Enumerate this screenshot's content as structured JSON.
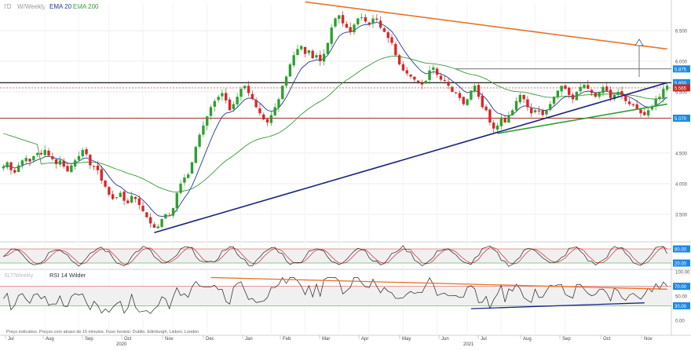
{
  "header": {
    "instrument": "I'D",
    "timeframe": "W/Weekly",
    "indicators": [
      "EMA 20",
      "EMA 200"
    ]
  },
  "rsi_header": {
    "prefix": "SLT/Weekly",
    "label": "RSI 14 Wilder"
  },
  "footer_note": "Preço indicativo. Preços com atraso de 15 minutos. Fuso horário: Dublin, Edinburgh, Lisbon, London",
  "colors": {
    "up_candle": "#2ca02c",
    "down_candle": "#d62728",
    "ema20": "#1f3a93",
    "ema200": "#3a9a3a",
    "trend_orange": "#e8742a",
    "trend_navy": "#1a237e",
    "trend_green": "#2e9e2e",
    "resistance_black": "#000000",
    "support_red": "#a0302a",
    "badge_blue": "#1e88e5",
    "badge_red": "#c62828"
  },
  "chart_data": [
    {
      "type": "candlestick",
      "panel": "price",
      "y_ticks": [
        "6.500",
        "6.000",
        "5.500",
        "5.070",
        "4.500",
        "4.000",
        "3.500"
      ],
      "y_tick_values": [
        6.5,
        6.0,
        5.5,
        5.07,
        4.5,
        4.0,
        3.5
      ],
      "ylim": [
        3.1,
        6.95
      ],
      "badges": [
        {
          "label": "5.875",
          "value": 5.875,
          "color": "badge_blue"
        },
        {
          "label": "5.650",
          "value": 5.65,
          "color": "badge_blue"
        },
        {
          "label": "5.565",
          "value": 5.565,
          "color": "badge_red"
        },
        {
          "label": "5.070",
          "value": 5.07,
          "color": "badge_blue"
        }
      ],
      "horizontal_lines": [
        {
          "name": "resistance",
          "value": 5.65,
          "color": "resistance_black"
        },
        {
          "name": "target",
          "value": 5.875,
          "color": "resistance_black"
        },
        {
          "name": "support",
          "value": 5.07,
          "color": "support_red"
        }
      ],
      "trendlines": [
        {
          "name": "descending-resistance",
          "color": "trend_orange",
          "from": {
            "t": 80,
            "v": 6.97
          },
          "to": {
            "t": 176,
            "v": 6.2
          }
        },
        {
          "name": "long-term-support",
          "color": "trend_navy",
          "from": {
            "t": 40,
            "v": 3.2
          },
          "to": {
            "t": 176,
            "v": 5.65
          }
        },
        {
          "name": "short-term-support",
          "color": "trend_green",
          "from": {
            "t": 131,
            "v": 4.82
          },
          "to": {
            "t": 176,
            "v": 5.3
          }
        }
      ],
      "x_labels": [
        "Jul",
        "Aug",
        "Sep",
        "Oct",
        "Nov",
        "Dec",
        "Jan",
        "Feb",
        "Mar",
        "Apr",
        "May",
        "Jun",
        "Jul",
        "Aug",
        "Sep",
        "Oct",
        "Nov"
      ],
      "year_labels": [
        "2020",
        "2021"
      ],
      "series": [
        {
          "name": "price",
          "close": [
            4.28,
            4.35,
            4.22,
            4.18,
            4.3,
            4.38,
            4.42,
            4.36,
            4.45,
            4.5,
            4.48,
            4.55,
            4.46,
            4.4,
            4.32,
            4.38,
            4.28,
            4.2,
            4.3,
            4.38,
            4.45,
            4.55,
            4.48,
            4.3,
            4.28,
            4.22,
            4.05,
            3.95,
            3.82,
            3.75,
            3.78,
            3.85,
            3.72,
            3.68,
            3.8,
            3.75,
            3.65,
            3.55,
            3.45,
            3.35,
            3.28,
            3.3,
            3.42,
            3.5,
            3.48,
            3.6,
            3.85,
            4.0,
            4.1,
            4.15,
            4.35,
            4.6,
            4.8,
            4.95,
            5.1,
            5.25,
            5.35,
            5.42,
            5.48,
            5.36,
            5.2,
            5.3,
            5.42,
            5.55,
            5.6,
            5.48,
            5.38,
            5.25,
            5.15,
            5.05,
            5.0,
            5.12,
            5.25,
            5.38,
            5.6,
            5.75,
            5.95,
            6.1,
            6.2,
            6.25,
            6.12,
            6.18,
            6.05,
            6.1,
            6.0,
            6.12,
            6.3,
            6.55,
            6.7,
            6.75,
            6.62,
            6.55,
            6.48,
            6.6,
            6.7,
            6.72,
            6.65,
            6.6,
            6.7,
            6.68,
            6.55,
            6.48,
            6.38,
            6.3,
            6.1,
            5.95,
            5.85,
            5.8,
            5.75,
            5.7,
            5.65,
            5.62,
            5.68,
            5.85,
            5.9,
            5.78,
            5.7,
            5.68,
            5.6,
            5.5,
            5.48,
            5.4,
            5.3,
            5.38,
            5.52,
            5.6,
            5.42,
            5.25,
            5.2,
            5.0,
            4.9,
            4.95,
            5.08,
            5.0,
            5.12,
            5.2,
            5.35,
            5.45,
            5.38,
            5.25,
            5.15,
            5.2,
            5.18,
            5.12,
            5.2,
            5.3,
            5.42,
            5.52,
            5.6,
            5.55,
            5.45,
            5.38,
            5.5,
            5.58,
            5.62,
            5.55,
            5.48,
            5.42,
            5.5,
            5.58,
            5.52,
            5.4,
            5.45,
            5.5,
            5.45,
            5.35,
            5.3,
            5.28,
            5.22,
            5.15,
            5.12,
            5.2,
            5.25,
            5.38,
            5.42,
            5.55,
            5.6
          ]
        },
        {
          "name": "EMA 20",
          "color": "ema20"
        },
        {
          "name": "EMA 200",
          "color": "ema200"
        }
      ]
    },
    {
      "type": "line",
      "panel": "stochastic",
      "y_ticks": [
        "80.00",
        "20.00"
      ],
      "y_tick_values": [
        80,
        20
      ],
      "ylim": [
        0,
        100
      ],
      "bands": [
        80,
        20
      ]
    },
    {
      "type": "line",
      "panel": "rsi",
      "name": "RSI 14 Wilder",
      "y_ticks": [
        "100.00",
        "70.00",
        "50.00",
        "30.00",
        "0.00"
      ],
      "y_tick_values": [
        100,
        70,
        50,
        30,
        0
      ],
      "ylim": [
        0,
        100
      ],
      "bands": [
        70,
        30
      ],
      "trendlines": [
        {
          "name": "rsi-descending",
          "color": "trend_orange",
          "from": {
            "t": 55,
            "v": 88
          },
          "to": {
            "t": 176,
            "v": 64
          }
        },
        {
          "name": "rsi-ascending",
          "color": "trend_navy",
          "from": {
            "t": 124,
            "v": 24
          },
          "to": {
            "t": 170,
            "v": 36
          }
        }
      ]
    }
  ]
}
